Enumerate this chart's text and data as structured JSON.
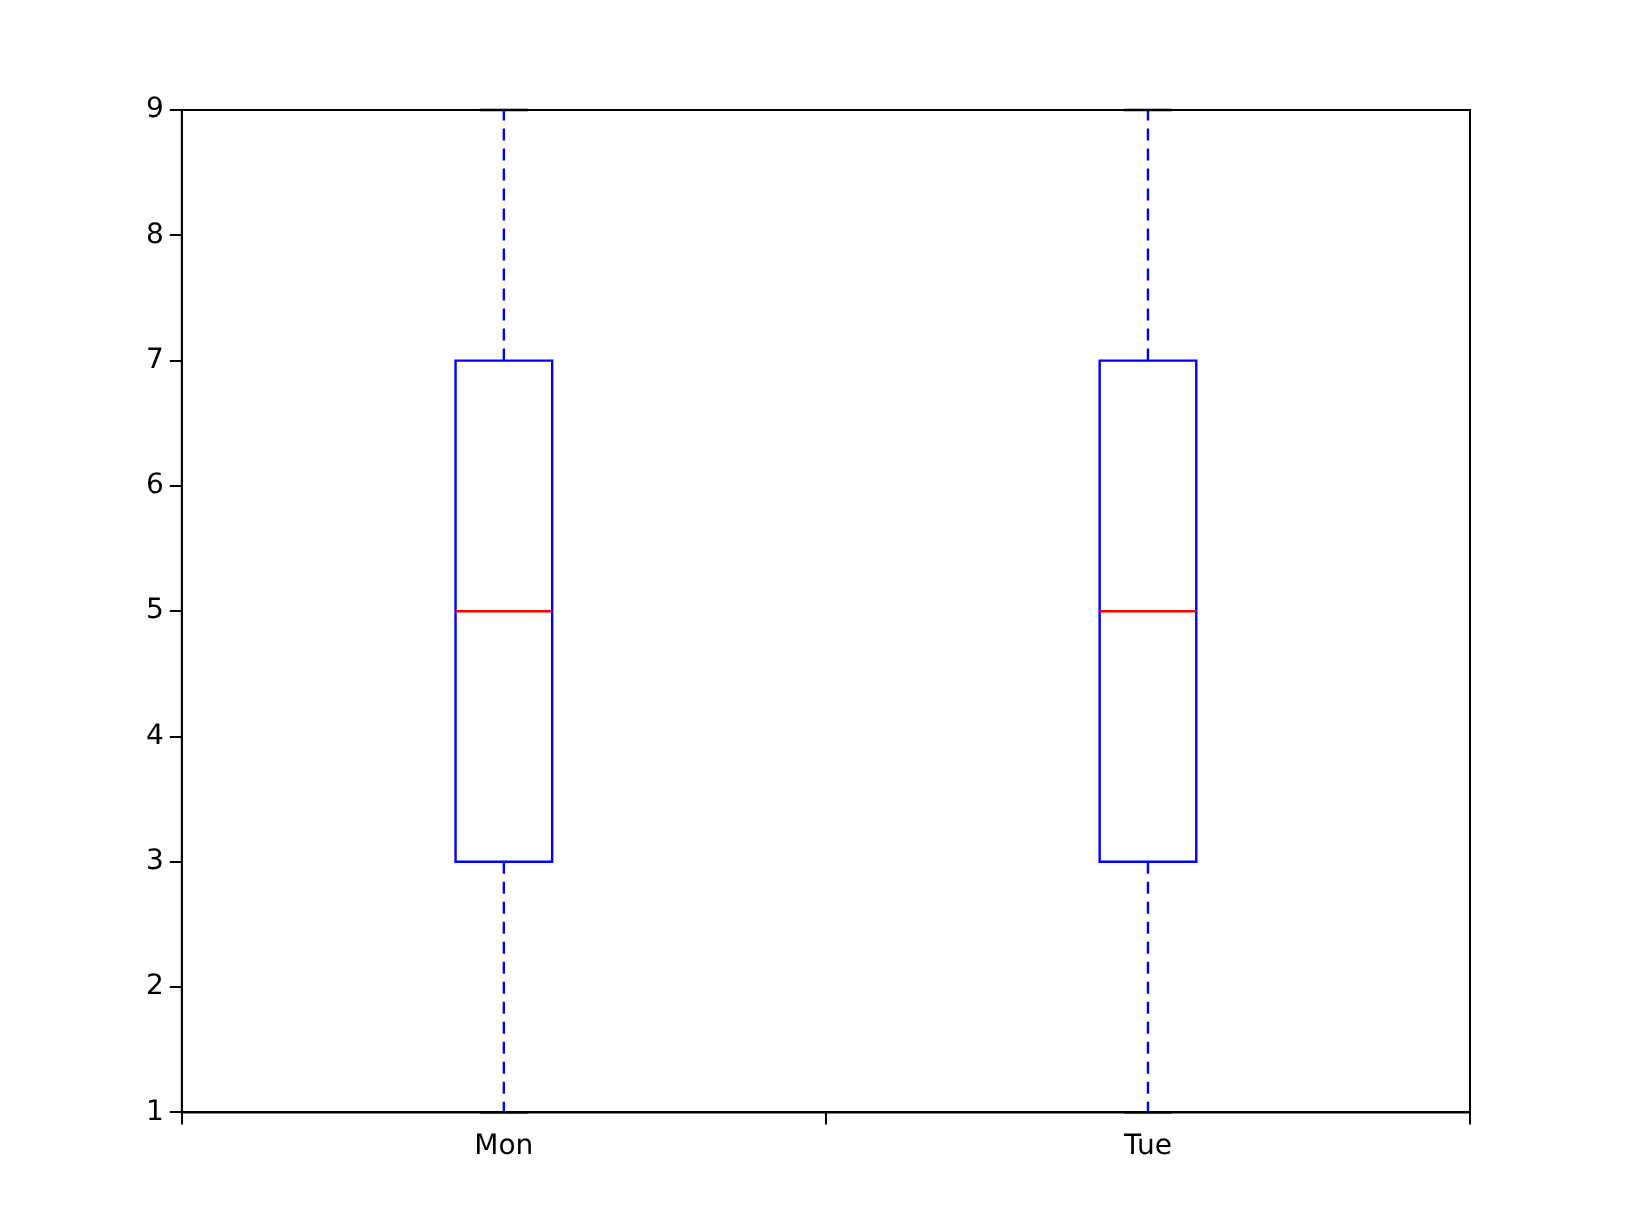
{
  "chart_data": {
    "type": "box",
    "categories": [
      "Mon",
      "Tue"
    ],
    "series": [
      {
        "color": "#0000ff",
        "boxes": [
          {
            "low": 1,
            "q1": 3,
            "median": 5,
            "q3": 7,
            "high": 9
          },
          {
            "low": 1,
            "q1": 3,
            "median": 5,
            "q3": 7,
            "high": 9
          }
        ]
      }
    ],
    "ylim": [
      1,
      9
    ],
    "yticks": [
      1,
      2,
      3,
      4,
      5,
      6,
      7,
      8,
      9
    ],
    "grid": false,
    "legend": false,
    "line_style": "dashed"
  }
}
